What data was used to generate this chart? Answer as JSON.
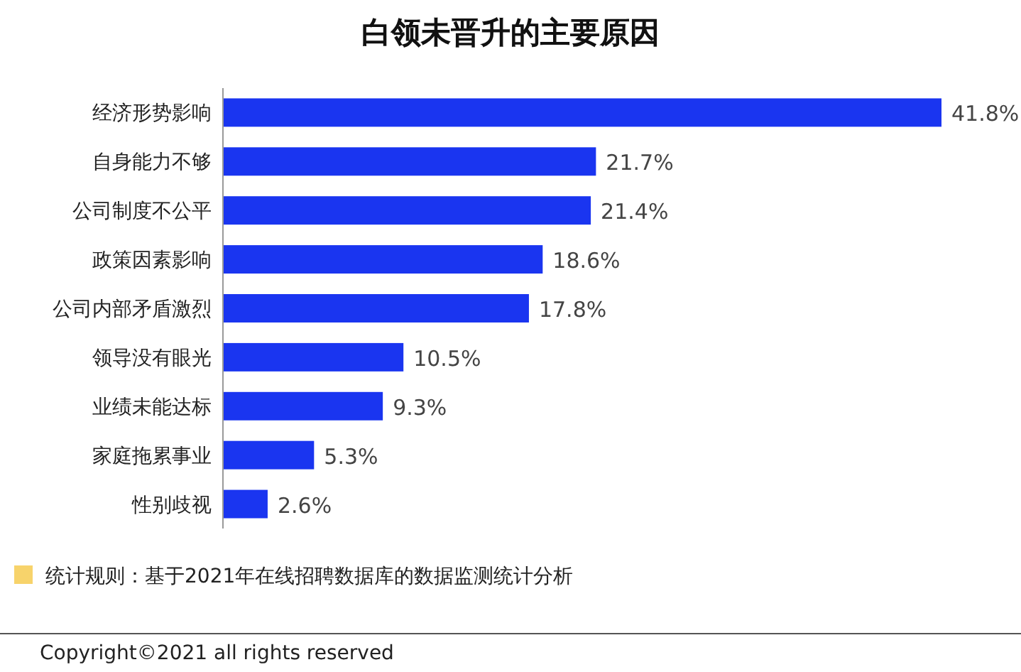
{
  "chart_data": {
    "type": "bar",
    "orientation": "horizontal",
    "title": "白领未晋升的主要原因",
    "categories": [
      "经济形势影响",
      "自身能力不够",
      "公司制度不公平",
      "政策因素影响",
      "公司内部矛盾激烈",
      "领导没有眼光",
      "业绩未能达标",
      "家庭拖累事业",
      "性别歧视"
    ],
    "values": [
      41.8,
      21.7,
      21.4,
      18.6,
      17.8,
      10.5,
      9.3,
      5.3,
      2.6
    ],
    "value_labels": [
      "41.8%",
      "21.7%",
      "21.4%",
      "18.6%",
      "17.8%",
      "10.5%",
      "9.3%",
      "5.3%",
      "2.6%"
    ],
    "color": "#1a35f0",
    "annotations": [
      "统计规则：基于2021年在线招聘数据库的数据监测统计分析",
      "Copyright©2021 all rights reserved"
    ]
  }
}
